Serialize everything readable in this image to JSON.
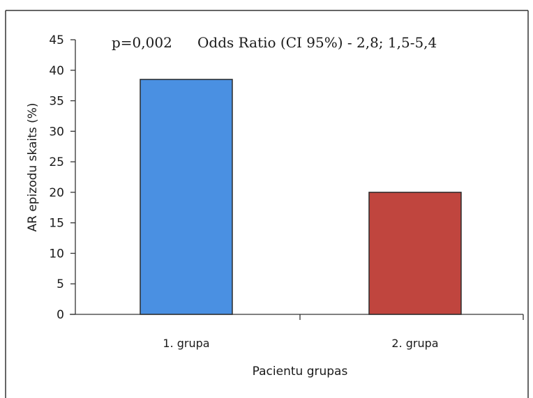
{
  "chart_data": {
    "type": "bar",
    "title": "",
    "categories": [
      "1. grupa",
      "2. grupa"
    ],
    "values": [
      38.5,
      20
    ],
    "bar_colors": [
      "#4a90e2",
      "#c0453e"
    ],
    "xlabel": "Pacientu grupas",
    "ylabel": "AR epizodu skaits (%)",
    "ylim": [
      0,
      45
    ],
    "yticks": [
      0,
      5,
      10,
      15,
      20,
      25,
      30,
      35,
      40,
      45
    ],
    "grid": false,
    "legend": "none",
    "annotations": {
      "p_value": "p=0,002",
      "odds_ratio": "Odds Ratio (CI 95%) - 2,8; 1,5-5,4"
    }
  }
}
